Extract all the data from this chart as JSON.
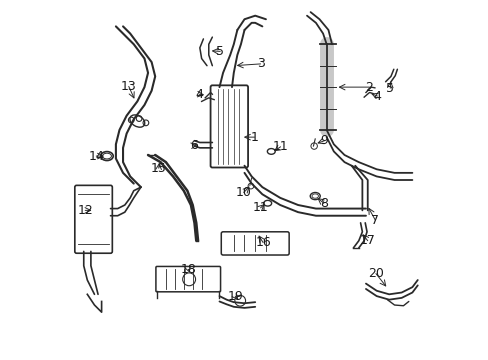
{
  "background_color": "#ffffff",
  "line_color": "#2a2a2a",
  "label_color": "#1a1a1a",
  "font_size": 9,
  "figsize": [
    4.89,
    3.6
  ],
  "dpi": 100
}
